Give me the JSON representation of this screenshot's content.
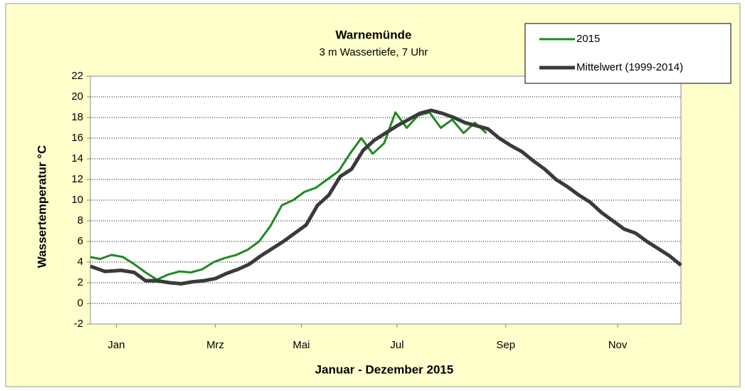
{
  "chart_data": {
    "type": "line",
    "title": "Warnemünde",
    "subtitle": "3 m Wassertiefe, 7 Uhr",
    "x_label": "Januar - Dezember 2015",
    "y_label": "Wassertemperatur °C",
    "xlim": [
      1,
      365
    ],
    "xticks": [
      {
        "value": 17,
        "label": "Jan"
      },
      {
        "value": 78,
        "label": "Mrz"
      },
      {
        "value": 131,
        "label": "Mai"
      },
      {
        "value": 190,
        "label": "Jul"
      },
      {
        "value": 257,
        "label": "Sep"
      },
      {
        "value": 326,
        "label": "Nov"
      }
    ],
    "ylim": [
      -2,
      22
    ],
    "yticks": [
      -2,
      0,
      2,
      4,
      6,
      8,
      10,
      12,
      14,
      16,
      18,
      20,
      22
    ],
    "grid": true,
    "legend": "top-right",
    "series": [
      {
        "name": "2015",
        "color": "#1e8a1e",
        "width": 3,
        "x": [
          1,
          7,
          14,
          21,
          28,
          35,
          42,
          49,
          56,
          63,
          70,
          77,
          84,
          91,
          98,
          105,
          112,
          119,
          126,
          133,
          140,
          147,
          154,
          161,
          168,
          175,
          182,
          189,
          196,
          203,
          210,
          217,
          224,
          231,
          238,
          245
        ],
        "values": [
          4.5,
          4.3,
          4.7,
          4.5,
          3.8,
          3.0,
          2.3,
          2.8,
          3.1,
          3.0,
          3.3,
          4.0,
          4.4,
          4.7,
          5.2,
          6.0,
          7.5,
          9.5,
          10.0,
          10.8,
          11.2,
          12.0,
          12.8,
          14.5,
          16.0,
          14.5,
          15.5,
          18.5,
          17.0,
          18.2,
          18.5,
          17.0,
          17.8,
          16.5,
          17.5,
          16.5
        ]
      },
      {
        "name": "Mittelwert (1999-2014)",
        "color": "#3a3a3a",
        "width": 5,
        "x": [
          1,
          10,
          20,
          28,
          35,
          42,
          50,
          57,
          64,
          71,
          78,
          85,
          92,
          99,
          106,
          113,
          120,
          127,
          134,
          141,
          148,
          155,
          162,
          169,
          176,
          183,
          190,
          197,
          204,
          211,
          218,
          225,
          232,
          239,
          246,
          253,
          260,
          267,
          274,
          281,
          288,
          295,
          302,
          309,
          316,
          323,
          330,
          337,
          344,
          351,
          358,
          365
        ],
        "values": [
          3.6,
          3.1,
          3.2,
          3.0,
          2.2,
          2.2,
          2.0,
          1.9,
          2.1,
          2.2,
          2.4,
          2.9,
          3.3,
          3.8,
          4.6,
          5.3,
          6.0,
          6.8,
          7.6,
          9.5,
          10.5,
          12.3,
          13.0,
          14.8,
          15.8,
          16.5,
          17.2,
          17.8,
          18.4,
          18.7,
          18.4,
          18.0,
          17.5,
          17.2,
          16.9,
          16.0,
          15.3,
          14.7,
          13.8,
          13.0,
          12.0,
          11.3,
          10.5,
          9.8,
          8.8,
          8.0,
          7.2,
          6.8,
          6.0,
          5.3,
          4.6,
          3.7
        ]
      }
    ]
  }
}
